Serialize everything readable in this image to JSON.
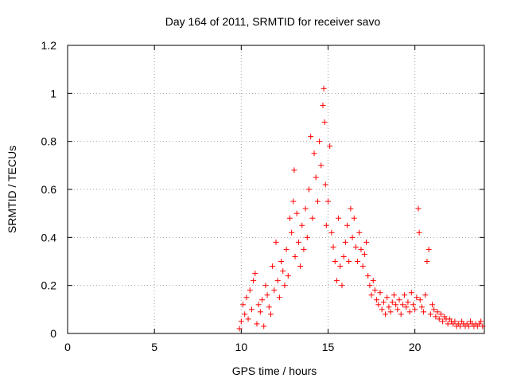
{
  "chart_data": {
    "type": "scatter",
    "title": "Day 164 of 2011, SRMTID for receiver savo",
    "xlabel": "GPS time / hours",
    "ylabel": "SRMTID / TECUs",
    "xlim": [
      0,
      24
    ],
    "ylim": [
      0,
      1.2
    ],
    "xticks": [
      0,
      5,
      10,
      15,
      20
    ],
    "xtick_labels": [
      "0",
      "5",
      "10",
      "15",
      "20"
    ],
    "yticks": [
      0,
      0.2,
      0.4,
      0.6,
      0.8,
      1,
      1.2
    ],
    "ytick_labels": [
      "0",
      "0.2",
      "0.4",
      "0.6",
      "0.8",
      "1",
      "1.2"
    ],
    "grid": true,
    "marker": "+",
    "color": "#ff0000",
    "series": [
      {
        "name": "savo",
        "points": [
          [
            9.9,
            0.02
          ],
          [
            10.0,
            0.05
          ],
          [
            10.1,
            0.12
          ],
          [
            10.2,
            0.08
          ],
          [
            10.3,
            0.15
          ],
          [
            10.4,
            0.06
          ],
          [
            10.5,
            0.18
          ],
          [
            10.6,
            0.1
          ],
          [
            10.7,
            0.22
          ],
          [
            10.8,
            0.25
          ],
          [
            10.9,
            0.04
          ],
          [
            11.0,
            0.12
          ],
          [
            11.1,
            0.09
          ],
          [
            11.2,
            0.14
          ],
          [
            11.3,
            0.03
          ],
          [
            11.4,
            0.2
          ],
          [
            11.5,
            0.16
          ],
          [
            11.6,
            0.11
          ],
          [
            11.7,
            0.08
          ],
          [
            11.8,
            0.28
          ],
          [
            11.9,
            0.18
          ],
          [
            12.0,
            0.38
          ],
          [
            12.1,
            0.22
          ],
          [
            12.2,
            0.15
          ],
          [
            12.3,
            0.3
          ],
          [
            12.4,
            0.26
          ],
          [
            12.5,
            0.2
          ],
          [
            12.6,
            0.35
          ],
          [
            12.7,
            0.24
          ],
          [
            12.8,
            0.48
          ],
          [
            12.9,
            0.42
          ],
          [
            13.0,
            0.55
          ],
          [
            13.05,
            0.68
          ],
          [
            13.1,
            0.32
          ],
          [
            13.2,
            0.5
          ],
          [
            13.3,
            0.38
          ],
          [
            13.4,
            0.28
          ],
          [
            13.5,
            0.45
          ],
          [
            13.6,
            0.35
          ],
          [
            13.7,
            0.52
          ],
          [
            13.8,
            0.4
          ],
          [
            13.9,
            0.6
          ],
          [
            14.0,
            0.82
          ],
          [
            14.1,
            0.48
          ],
          [
            14.2,
            0.75
          ],
          [
            14.3,
            0.65
          ],
          [
            14.4,
            0.55
          ],
          [
            14.5,
            0.8
          ],
          [
            14.6,
            0.7
          ],
          [
            14.7,
            0.95
          ],
          [
            14.75,
            1.02
          ],
          [
            14.8,
            0.88
          ],
          [
            14.85,
            0.62
          ],
          [
            14.9,
            0.45
          ],
          [
            15.0,
            0.55
          ],
          [
            15.1,
            0.78
          ],
          [
            15.2,
            0.42
          ],
          [
            15.3,
            0.36
          ],
          [
            15.4,
            0.3
          ],
          [
            15.5,
            0.22
          ],
          [
            15.6,
            0.48
          ],
          [
            15.7,
            0.28
          ],
          [
            15.8,
            0.2
          ],
          [
            15.9,
            0.32
          ],
          [
            16.0,
            0.38
          ],
          [
            16.1,
            0.45
          ],
          [
            16.2,
            0.3
          ],
          [
            16.3,
            0.52
          ],
          [
            16.4,
            0.4
          ],
          [
            16.5,
            0.48
          ],
          [
            16.6,
            0.36
          ],
          [
            16.7,
            0.3
          ],
          [
            16.8,
            0.42
          ],
          [
            16.9,
            0.35
          ],
          [
            17.0,
            0.28
          ],
          [
            17.1,
            0.33
          ],
          [
            17.2,
            0.38
          ],
          [
            17.3,
            0.24
          ],
          [
            17.4,
            0.2
          ],
          [
            17.5,
            0.16
          ],
          [
            17.6,
            0.22
          ],
          [
            17.7,
            0.18
          ],
          [
            17.8,
            0.14
          ],
          [
            17.9,
            0.12
          ],
          [
            18.0,
            0.17
          ],
          [
            18.1,
            0.1
          ],
          [
            18.2,
            0.13
          ],
          [
            18.3,
            0.08
          ],
          [
            18.4,
            0.15
          ],
          [
            18.5,
            0.11
          ],
          [
            18.6,
            0.09
          ],
          [
            18.7,
            0.13
          ],
          [
            18.8,
            0.16
          ],
          [
            18.9,
            0.12
          ],
          [
            19.0,
            0.1
          ],
          [
            19.1,
            0.14
          ],
          [
            19.2,
            0.08
          ],
          [
            19.3,
            0.12
          ],
          [
            19.4,
            0.16
          ],
          [
            19.5,
            0.11
          ],
          [
            19.6,
            0.13
          ],
          [
            19.7,
            0.09
          ],
          [
            19.8,
            0.17
          ],
          [
            19.9,
            0.12
          ],
          [
            20.0,
            0.1
          ],
          [
            20.1,
            0.15
          ],
          [
            20.2,
            0.52
          ],
          [
            20.25,
            0.42
          ],
          [
            20.3,
            0.14
          ],
          [
            20.4,
            0.11
          ],
          [
            20.5,
            0.09
          ],
          [
            20.6,
            0.16
          ],
          [
            20.7,
            0.3
          ],
          [
            20.8,
            0.35
          ],
          [
            20.9,
            0.08
          ],
          [
            21.0,
            0.12
          ],
          [
            21.1,
            0.1
          ],
          [
            21.2,
            0.07
          ],
          [
            21.3,
            0.09
          ],
          [
            21.4,
            0.06
          ],
          [
            21.5,
            0.08
          ],
          [
            21.6,
            0.05
          ],
          [
            21.7,
            0.07
          ],
          [
            21.8,
            0.06
          ],
          [
            21.9,
            0.04
          ],
          [
            22.0,
            0.06
          ],
          [
            22.1,
            0.05
          ],
          [
            22.2,
            0.04
          ],
          [
            22.3,
            0.05
          ],
          [
            22.4,
            0.03
          ],
          [
            22.5,
            0.04
          ],
          [
            22.6,
            0.03
          ],
          [
            22.7,
            0.05
          ],
          [
            22.8,
            0.04
          ],
          [
            22.9,
            0.03
          ],
          [
            23.0,
            0.04
          ],
          [
            23.1,
            0.03
          ],
          [
            23.2,
            0.05
          ],
          [
            23.3,
            0.04
          ],
          [
            23.4,
            0.03
          ],
          [
            23.5,
            0.04
          ],
          [
            23.6,
            0.03
          ],
          [
            23.7,
            0.04
          ],
          [
            23.8,
            0.05
          ],
          [
            23.9,
            0.03
          ]
        ]
      }
    ]
  }
}
